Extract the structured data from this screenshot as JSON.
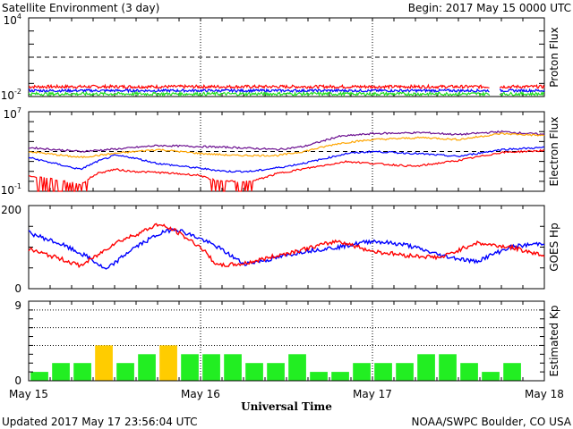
{
  "header": {
    "title": "Satellite Environment (3 day)",
    "begin": "Begin:  2017 May 15 0000 UTC"
  },
  "footer": {
    "updated": "Updated 2017 May 17 23:56:04 UTC",
    "credit": "NOAA/SWPC Boulder, CO USA"
  },
  "colors": {
    "red": "#ff0000",
    "blue": "#0000ff",
    "green": "#22dd22",
    "orange": "#ffa500",
    "purple": "#6a0d8f",
    "kp_quiet": "#22ee22",
    "kp_active": "#ffcc00"
  },
  "chart_data": [
    {
      "type": "line",
      "panel": "proton",
      "ylabel": "Proton Flux",
      "scale": "log",
      "ytick_labels": [
        {
          "base": "10",
          "exp": "4"
        },
        {
          "base": "10",
          "exp": "-2"
        }
      ],
      "ylim_exp": [
        -2,
        4
      ],
      "threshold_exp": 1,
      "series": [
        {
          "color": "red",
          "value_exp": -1.25,
          "noise": 0.12
        },
        {
          "color": "blue",
          "value_exp": -1.55,
          "noise": 0.1
        },
        {
          "color": "green",
          "value_exp": -1.8,
          "noise": 0.12
        }
      ],
      "data_gap_days": [
        2.68,
        2.74
      ]
    },
    {
      "type": "line",
      "panel": "electron",
      "ylabel": "Electron Flux",
      "scale": "log",
      "ytick_labels": [
        {
          "base": "10",
          "exp": "7"
        },
        {
          "base": "10",
          "exp": "-1"
        }
      ],
      "ylim_exp": [
        -1,
        7
      ],
      "threshold_exp": 3,
      "series": [
        {
          "color": "purple",
          "x_days": [
            0,
            0.3,
            0.55,
            0.75,
            1.0,
            1.2,
            1.45,
            1.6,
            1.8,
            2.0,
            2.3,
            2.5,
            2.75,
            3.0
          ],
          "y_exp": [
            3.4,
            3.0,
            3.3,
            3.6,
            3.5,
            3.4,
            3.2,
            3.5,
            4.5,
            4.8,
            4.9,
            4.7,
            5.0,
            4.7
          ]
        },
        {
          "color": "orange",
          "x_days": [
            0,
            0.3,
            0.5,
            0.75,
            1.0,
            1.2,
            1.45,
            1.6,
            1.8,
            2.0,
            2.3,
            2.5,
            2.75,
            3.0
          ],
          "y_exp": [
            3.0,
            2.4,
            2.8,
            3.2,
            2.8,
            2.6,
            2.6,
            3.0,
            3.8,
            4.2,
            4.4,
            4.2,
            4.8,
            4.6
          ]
        },
        {
          "color": "blue",
          "x_days": [
            0,
            0.15,
            0.3,
            0.4,
            0.5,
            0.6,
            0.75,
            1.0,
            1.15,
            1.3,
            1.5,
            1.65,
            1.85,
            2.0,
            2.25,
            2.5,
            2.75,
            3.0
          ],
          "y_exp": [
            2.4,
            1.8,
            1.2,
            2.0,
            2.6,
            2.4,
            1.8,
            1.3,
            1.0,
            1.0,
            1.5,
            2.0,
            2.8,
            3.0,
            2.8,
            2.5,
            3.2,
            3.4
          ]
        },
        {
          "color": "red",
          "x_days": [
            0,
            0.15,
            0.3,
            0.4,
            0.5,
            0.6,
            0.75,
            1.0,
            1.05,
            1.15,
            1.3,
            1.45,
            1.65,
            1.85,
            2.0,
            2.25,
            2.5,
            2.75,
            3.0
          ],
          "y_exp": [
            0.5,
            0.2,
            -0.3,
            0.8,
            1.2,
            1.0,
            0.9,
            0.6,
            0.2,
            0.0,
            0.0,
            0.8,
            1.4,
            2.0,
            1.8,
            1.5,
            2.1,
            2.9,
            3.1
          ]
        }
      ]
    },
    {
      "type": "line",
      "panel": "hp",
      "ylabel": "GOES Hp",
      "yticks": [
        0,
        200
      ],
      "ylim": [
        0,
        200
      ],
      "series": [
        {
          "color": "blue",
          "x_days": [
            0,
            0.2,
            0.35,
            0.45,
            0.6,
            0.75,
            0.85,
            1.0,
            1.1,
            1.25,
            1.4,
            1.6,
            1.8,
            2.0,
            2.2,
            2.4,
            2.6,
            2.8,
            3.0
          ],
          "y": [
            135,
            105,
            75,
            45,
            95,
            130,
            145,
            120,
            100,
            60,
            70,
            90,
            100,
            115,
            105,
            80,
            65,
            100,
            110
          ]
        },
        {
          "color": "red",
          "x_days": [
            0,
            0.2,
            0.3,
            0.4,
            0.5,
            0.65,
            0.75,
            0.85,
            1.0,
            1.1,
            1.25,
            1.4,
            1.6,
            1.8,
            2.0,
            2.2,
            2.4,
            2.6,
            2.8,
            3.0
          ],
          "y": [
            95,
            70,
            55,
            80,
            110,
            135,
            155,
            140,
            100,
            55,
            60,
            75,
            95,
            115,
            90,
            80,
            75,
            110,
            100,
            80
          ]
        }
      ]
    },
    {
      "type": "bar",
      "panel": "kp",
      "ylabel": "Estimated Kp",
      "yticks": [
        0,
        9
      ],
      "ylim": [
        0,
        9
      ],
      "dotted_levels": [
        4,
        6,
        8
      ],
      "values": [
        1,
        2,
        2,
        4,
        2,
        3,
        4,
        3,
        3,
        3,
        2,
        2,
        3,
        1,
        1,
        2,
        2,
        2,
        3,
        3,
        2,
        1,
        2
      ],
      "active_threshold": 4
    }
  ],
  "xaxis": {
    "title": "Universal Time",
    "tick_labels": [
      "May 15",
      "May 16",
      "May 17",
      "May 18"
    ],
    "days": 3
  }
}
